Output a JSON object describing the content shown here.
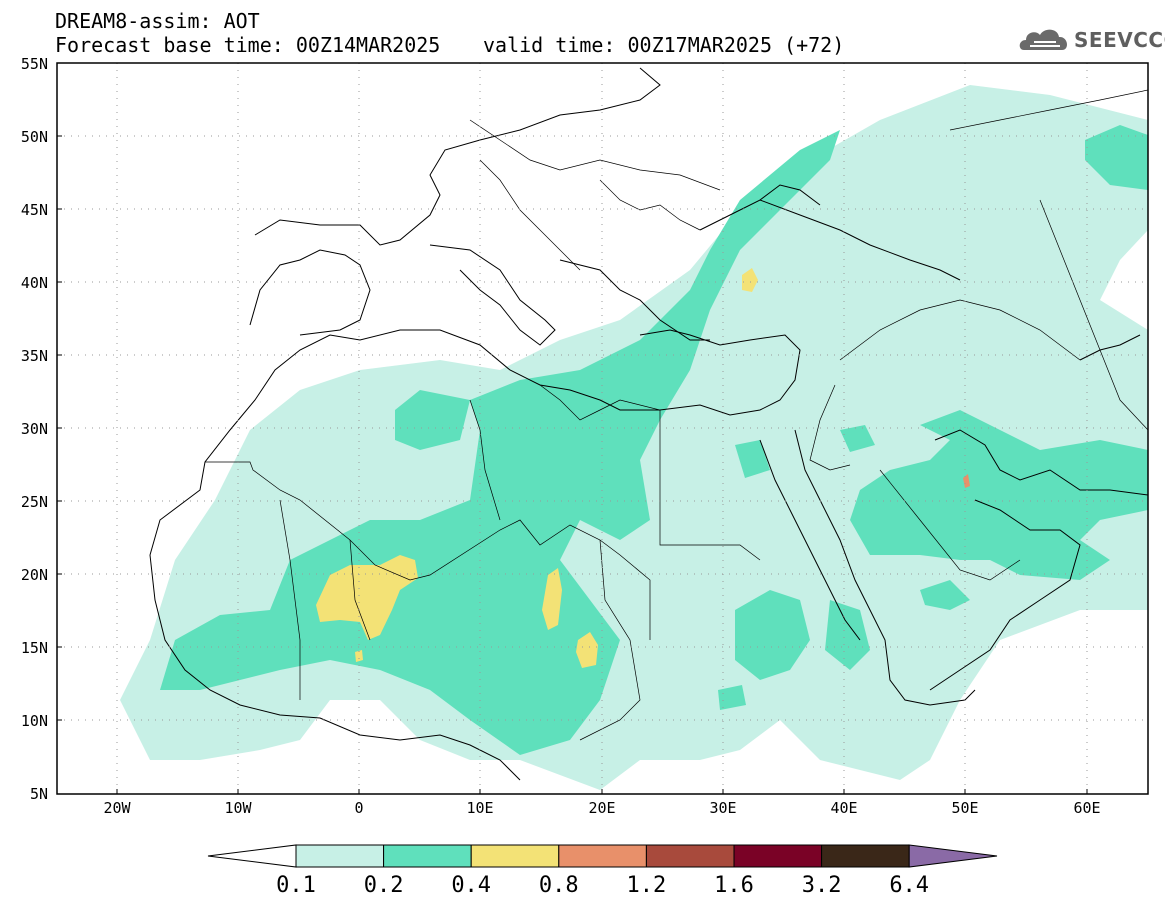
{
  "header": {
    "title": "DREAM8-assim: AOT",
    "base_time": "Forecast base time: 00Z14MAR2025",
    "valid_time": "valid time: 00Z17MAR2025 (+72)"
  },
  "logo": {
    "text": "SEEVCCC",
    "icon": "cloud-icon"
  },
  "map": {
    "lon_range": [
      -25,
      65
    ],
    "lat_range": [
      5,
      55
    ],
    "lat_labels": [
      "55N",
      "50N",
      "45N",
      "40N",
      "35N",
      "30N",
      "25N",
      "20N",
      "15N",
      "10N",
      "5N"
    ],
    "lon_labels": [
      "20W",
      "10W",
      "0",
      "10E",
      "20E",
      "30E",
      "40E",
      "50E",
      "60E"
    ],
    "grid": "dotted"
  },
  "colorbar": {
    "levels": [
      "0.1",
      "0.2",
      "0.4",
      "0.8",
      "1.2",
      "1.6",
      "3.2",
      "6.4"
    ],
    "colors": [
      "#ffffff",
      "#c7f0e6",
      "#5fe0bc",
      "#f3e276",
      "#e8906a",
      "#a84a3c",
      "#7a0226",
      "#3a2718",
      "#8a6aa6"
    ]
  },
  "colors": {
    "aot_low": "#c7f0e6",
    "aot_mid": "#5fe0bc",
    "aot_high": "#f3e276",
    "aot_higher": "#e8906a"
  }
}
